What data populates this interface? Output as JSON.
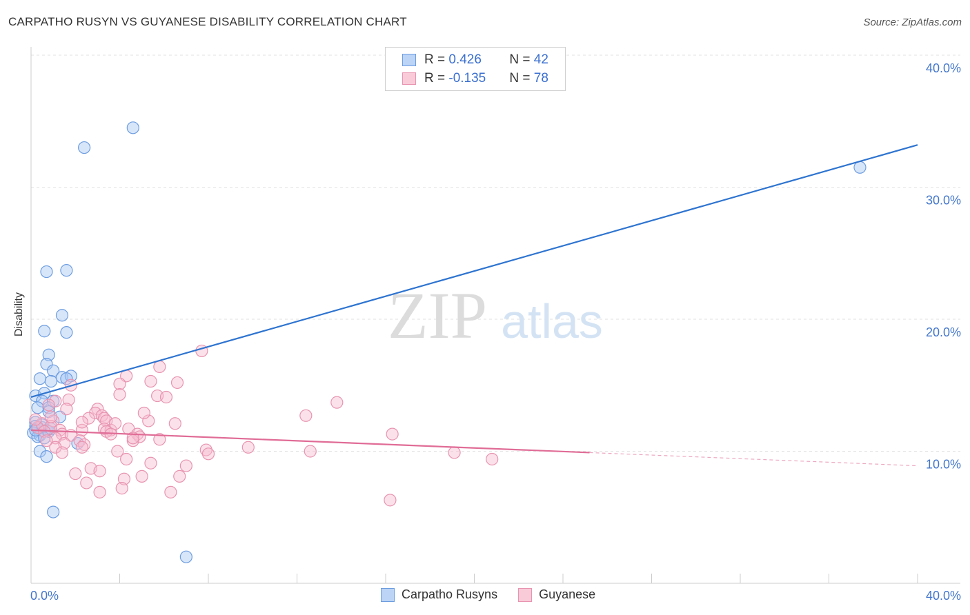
{
  "header": {
    "title": "CARPATHO RUSYN VS GUYANESE DISABILITY CORRELATION CHART",
    "source": "Source: ZipAtlas.com"
  },
  "legend": {
    "rows": [
      {
        "r_label": "R = ",
        "r_value": "0.426",
        "n_label": "N = ",
        "n_value": "42"
      },
      {
        "r_label": "R = ",
        "r_value": "-0.135",
        "n_label": "N = ",
        "n_value": "78"
      }
    ],
    "bottom": [
      "Carpatho Rusyns",
      "Guyanese"
    ]
  },
  "watermark": {
    "zip": "ZIP",
    "atlas": "atlas"
  },
  "colors": {
    "blue_fill": "#a8c8f4",
    "blue_stroke": "#6d9de0",
    "blue_line": "#2e74d0",
    "pink_fill": "#f7bdd0",
    "pink_stroke": "#e894b0",
    "pink_line": "#e06c96",
    "axis_text": "#4477cc"
  },
  "chart_data": {
    "type": "scatter",
    "title": "CARPATHO RUSYN VS GUYANESE DISABILITY CORRELATION CHART",
    "xlabel": "",
    "ylabel": "Disability",
    "xlim": [
      0,
      40
    ],
    "ylim": [
      0,
      40
    ],
    "x_tick_labels": [
      "0.0%",
      "40.0%"
    ],
    "y_ticks": [
      10,
      20,
      30,
      40
    ],
    "y_tick_labels": [
      "10.0%",
      "20.0%",
      "30.0%",
      "40.0%"
    ],
    "series": [
      {
        "name": "Carpatho Rusyns",
        "color": "blue",
        "R": 0.426,
        "N": 42,
        "trend": {
          "x": [
            0,
            40
          ],
          "y": [
            14.1,
            33.2
          ],
          "solid_to": 40
        },
        "points": [
          [
            4.6,
            34.5
          ],
          [
            2.4,
            33.0
          ],
          [
            37.4,
            31.5
          ],
          [
            0.7,
            23.6
          ],
          [
            1.6,
            23.7
          ],
          [
            1.4,
            20.3
          ],
          [
            0.6,
            19.1
          ],
          [
            1.6,
            19.0
          ],
          [
            0.8,
            17.3
          ],
          [
            0.7,
            16.6
          ],
          [
            1.0,
            16.1
          ],
          [
            1.4,
            15.6
          ],
          [
            1.8,
            15.7
          ],
          [
            0.4,
            15.5
          ],
          [
            0.9,
            15.3
          ],
          [
            1.6,
            15.5
          ],
          [
            0.2,
            14.2
          ],
          [
            0.6,
            14.4
          ],
          [
            0.5,
            13.8
          ],
          [
            1.0,
            13.8
          ],
          [
            0.3,
            13.3
          ],
          [
            0.8,
            13.3
          ],
          [
            0.8,
            13.0
          ],
          [
            1.3,
            12.6
          ],
          [
            0.2,
            12.2
          ],
          [
            0.2,
            11.9
          ],
          [
            0.5,
            11.8
          ],
          [
            0.3,
            11.7
          ],
          [
            0.7,
            11.6
          ],
          [
            0.1,
            11.4
          ],
          [
            0.4,
            11.2
          ],
          [
            0.3,
            11.1
          ],
          [
            0.6,
            11.0
          ],
          [
            0.8,
            11.5
          ],
          [
            2.1,
            10.6
          ],
          [
            0.4,
            10.0
          ],
          [
            0.7,
            9.6
          ],
          [
            1.0,
            5.4
          ],
          [
            7.0,
            2.0
          ],
          [
            0.2,
            11.6
          ],
          [
            0.5,
            12.0
          ],
          [
            0.9,
            11.7
          ]
        ]
      },
      {
        "name": "Guyanese",
        "color": "pink",
        "R": -0.135,
        "N": 78,
        "trend": {
          "x": [
            0,
            40
          ],
          "y": [
            11.6,
            8.9
          ],
          "solid_to": 25.2
        },
        "points": [
          [
            7.7,
            17.6
          ],
          [
            5.8,
            16.4
          ],
          [
            4.3,
            15.7
          ],
          [
            4.0,
            15.1
          ],
          [
            5.4,
            15.3
          ],
          [
            6.6,
            15.2
          ],
          [
            1.8,
            15.0
          ],
          [
            4.0,
            14.3
          ],
          [
            5.7,
            14.2
          ],
          [
            6.1,
            14.1
          ],
          [
            1.1,
            13.8
          ],
          [
            1.7,
            13.9
          ],
          [
            13.8,
            13.7
          ],
          [
            0.8,
            13.5
          ],
          [
            3.0,
            13.2
          ],
          [
            1.6,
            13.2
          ],
          [
            2.9,
            12.9
          ],
          [
            3.2,
            12.7
          ],
          [
            3.3,
            12.5
          ],
          [
            2.6,
            12.5
          ],
          [
            12.4,
            12.7
          ],
          [
            3.4,
            12.3
          ],
          [
            5.3,
            12.3
          ],
          [
            6.5,
            12.1
          ],
          [
            1.0,
            12.3
          ],
          [
            0.5,
            12.1
          ],
          [
            0.9,
            11.9
          ],
          [
            0.3,
            11.8
          ],
          [
            1.3,
            11.6
          ],
          [
            2.3,
            11.6
          ],
          [
            3.3,
            11.7
          ],
          [
            3.6,
            11.6
          ],
          [
            4.4,
            11.7
          ],
          [
            3.4,
            11.5
          ],
          [
            0.6,
            11.5
          ],
          [
            4.8,
            11.3
          ],
          [
            3.6,
            11.3
          ],
          [
            1.4,
            11.3
          ],
          [
            1.8,
            11.2
          ],
          [
            1.1,
            11.0
          ],
          [
            4.9,
            11.1
          ],
          [
            5.8,
            10.9
          ],
          [
            2.2,
            10.8
          ],
          [
            4.6,
            10.8
          ],
          [
            16.3,
            11.3
          ],
          [
            1.5,
            10.6
          ],
          [
            2.4,
            10.5
          ],
          [
            2.3,
            10.3
          ],
          [
            1.1,
            10.3
          ],
          [
            7.9,
            10.1
          ],
          [
            9.8,
            10.3
          ],
          [
            12.6,
            10.0
          ],
          [
            3.9,
            10.0
          ],
          [
            1.4,
            9.9
          ],
          [
            8.0,
            9.8
          ],
          [
            19.1,
            9.9
          ],
          [
            20.8,
            9.4
          ],
          [
            4.3,
            9.4
          ],
          [
            5.4,
            9.1
          ],
          [
            7.0,
            8.9
          ],
          [
            2.7,
            8.7
          ],
          [
            3.1,
            8.5
          ],
          [
            2.0,
            8.3
          ],
          [
            6.7,
            8.1
          ],
          [
            5.0,
            8.1
          ],
          [
            4.2,
            7.9
          ],
          [
            2.5,
            7.6
          ],
          [
            4.1,
            7.2
          ],
          [
            3.1,
            6.9
          ],
          [
            6.3,
            6.9
          ],
          [
            16.2,
            6.3
          ],
          [
            0.9,
            12.6
          ],
          [
            2.3,
            12.2
          ],
          [
            4.6,
            11.0
          ],
          [
            3.8,
            12.1
          ],
          [
            5.1,
            12.9
          ],
          [
            0.2,
            12.4
          ],
          [
            0.7,
            10.8
          ]
        ]
      }
    ]
  }
}
